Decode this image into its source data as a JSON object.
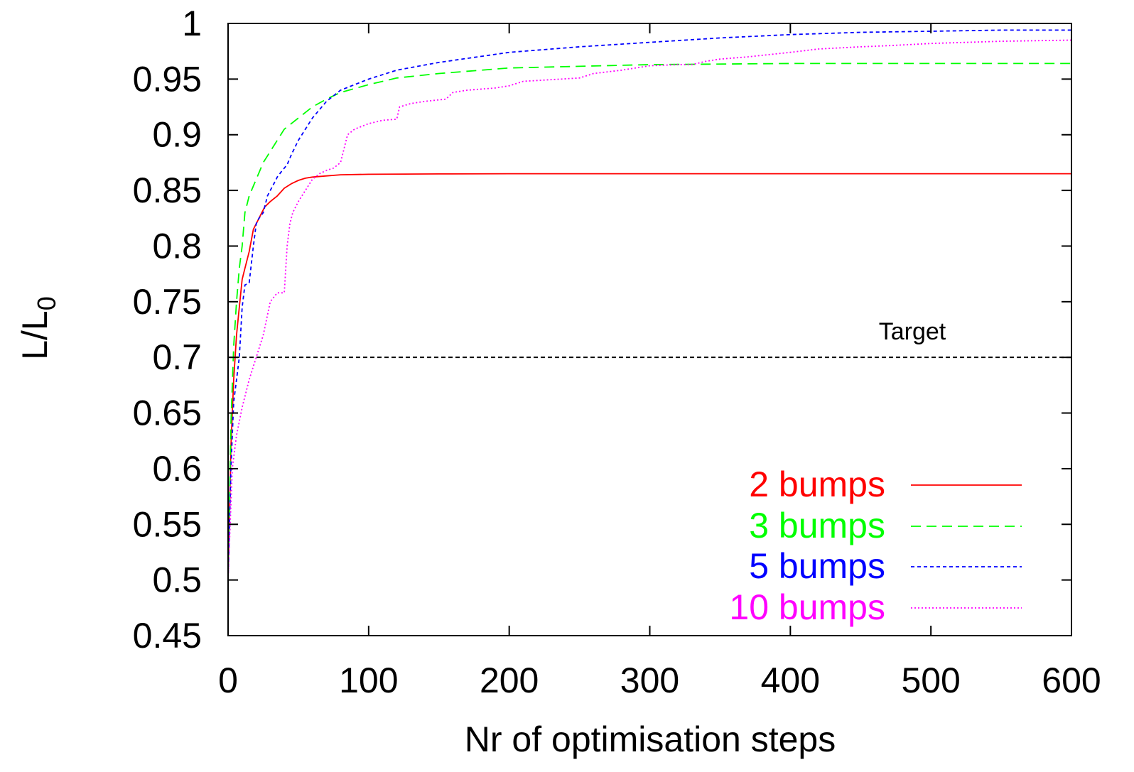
{
  "chart_data": {
    "type": "line",
    "title": "",
    "xlabel": "Nr of optimisation steps",
    "ylabel_main": "L/L",
    "ylabel_sub": "0",
    "xlim": [
      0,
      600
    ],
    "ylim": [
      0.45,
      1
    ],
    "xticks": [
      0,
      100,
      200,
      300,
      400,
      500,
      600
    ],
    "yticks": [
      0.45,
      0.5,
      0.55,
      0.6,
      0.65,
      0.7,
      0.75,
      0.8,
      0.85,
      0.9,
      0.95,
      1
    ],
    "grid": false,
    "legend_position": "bottom-right",
    "target": {
      "label": "Target",
      "y": 0.7,
      "color": "#000000"
    },
    "series": [
      {
        "name": "2 bumps",
        "color": "#ff0000",
        "dash": "",
        "x": [
          0,
          2,
          4,
          6,
          8,
          10,
          12,
          15,
          18,
          22,
          26,
          30,
          35,
          40,
          45,
          50,
          55,
          60,
          70,
          80,
          100,
          150,
          200,
          300,
          400,
          500,
          600
        ],
        "y": [
          0.5,
          0.62,
          0.68,
          0.72,
          0.745,
          0.77,
          0.78,
          0.795,
          0.815,
          0.825,
          0.835,
          0.84,
          0.845,
          0.852,
          0.856,
          0.859,
          0.861,
          0.862,
          0.863,
          0.864,
          0.8645,
          0.8648,
          0.865,
          0.865,
          0.865,
          0.865,
          0.865
        ]
      },
      {
        "name": "3 bumps",
        "color": "#00ff00",
        "dash": "14,8",
        "x": [
          0,
          2,
          4,
          6,
          8,
          10,
          12,
          15,
          20,
          25,
          30,
          35,
          40,
          50,
          60,
          70,
          80,
          100,
          120,
          150,
          200,
          300,
          400,
          500,
          600
        ],
        "y": [
          0.5,
          0.64,
          0.71,
          0.75,
          0.78,
          0.8,
          0.83,
          0.845,
          0.86,
          0.875,
          0.885,
          0.895,
          0.905,
          0.915,
          0.925,
          0.932,
          0.938,
          0.945,
          0.951,
          0.955,
          0.96,
          0.963,
          0.964,
          0.964,
          0.964
        ]
      },
      {
        "name": "5 bumps",
        "color": "#0000ff",
        "dash": "5,4",
        "x": [
          0,
          2,
          4,
          6,
          8,
          10,
          12,
          15,
          18,
          20,
          22,
          25,
          28,
          30,
          33,
          35,
          38,
          40,
          42,
          45,
          50,
          55,
          60,
          70,
          80,
          90,
          100,
          120,
          150,
          200,
          250,
          300,
          350,
          400,
          450,
          500,
          550,
          600
        ],
        "y": [
          0.5,
          0.6,
          0.66,
          0.68,
          0.7,
          0.745,
          0.765,
          0.767,
          0.8,
          0.82,
          0.825,
          0.83,
          0.845,
          0.85,
          0.857,
          0.862,
          0.867,
          0.87,
          0.873,
          0.882,
          0.895,
          0.905,
          0.915,
          0.93,
          0.94,
          0.945,
          0.95,
          0.958,
          0.965,
          0.974,
          0.979,
          0.983,
          0.987,
          0.99,
          0.992,
          0.993,
          0.994,
          0.994
        ]
      },
      {
        "name": "10 bumps",
        "color": "#ff00ff",
        "dash": "2,3",
        "x": [
          0,
          3,
          6,
          10,
          15,
          20,
          25,
          30,
          35,
          40,
          42,
          44,
          46,
          50,
          55,
          60,
          65,
          70,
          75,
          80,
          83,
          85,
          90,
          100,
          110,
          120,
          122,
          130,
          140,
          155,
          160,
          170,
          190,
          200,
          210,
          250,
          260,
          280,
          300,
          320,
          330,
          340,
          350,
          370,
          400,
          420,
          450,
          470,
          500,
          550,
          600
        ],
        "y": [
          0.5,
          0.6,
          0.63,
          0.655,
          0.68,
          0.7,
          0.72,
          0.75,
          0.758,
          0.758,
          0.8,
          0.82,
          0.83,
          0.84,
          0.85,
          0.86,
          0.865,
          0.868,
          0.87,
          0.875,
          0.89,
          0.9,
          0.905,
          0.91,
          0.913,
          0.914,
          0.925,
          0.928,
          0.93,
          0.932,
          0.938,
          0.94,
          0.942,
          0.944,
          0.948,
          0.951,
          0.955,
          0.958,
          0.962,
          0.963,
          0.963,
          0.966,
          0.968,
          0.97,
          0.974,
          0.977,
          0.979,
          0.98,
          0.982,
          0.984,
          0.985
        ]
      }
    ]
  }
}
